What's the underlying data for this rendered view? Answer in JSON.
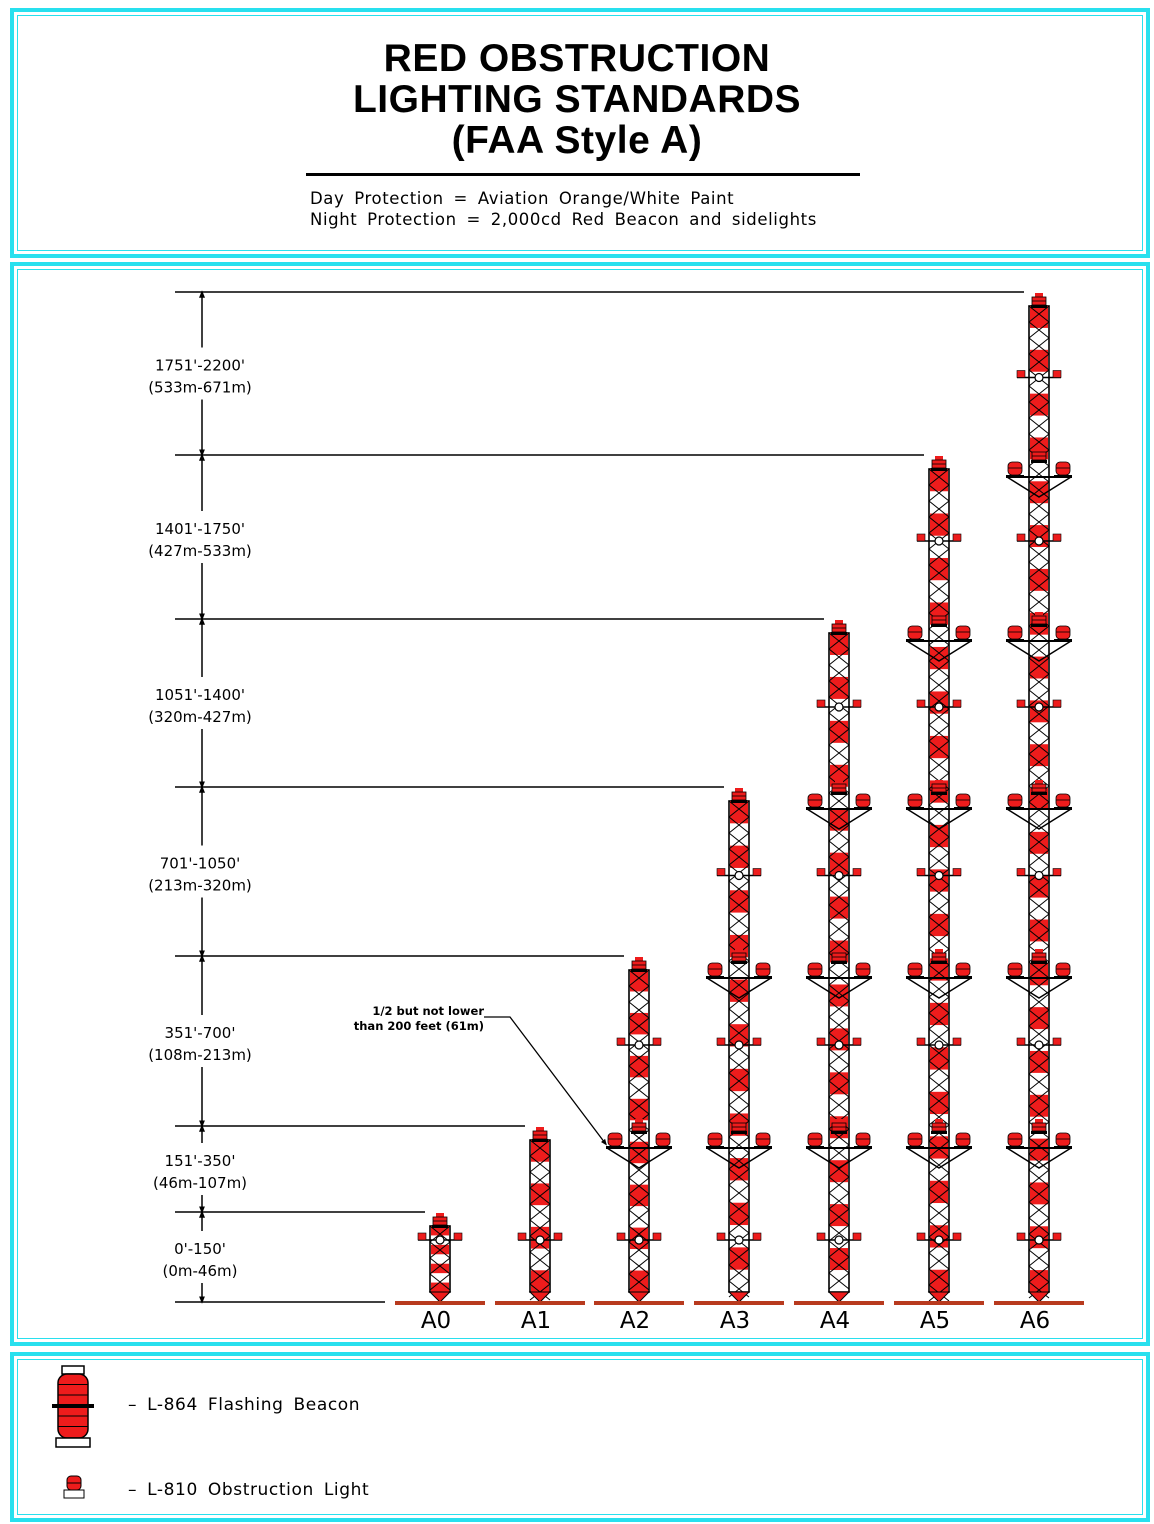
{
  "title": {
    "line1": "RED OBSTRUCTION",
    "line2": "LIGHTING STANDARDS",
    "line3": "(FAA Style A)"
  },
  "subtitle": {
    "line1": "Day Protection = Aviation Orange/White Paint",
    "line2": "Night Protection = 2,000cd Red Beacon and sidelights"
  },
  "height_bands": [
    {
      "feet": "1751'-2200'",
      "meters": "(533m-671m)"
    },
    {
      "feet": "1401'-1750'",
      "meters": "(427m-533m)"
    },
    {
      "feet": "1051'-1400'",
      "meters": "(320m-427m)"
    },
    {
      "feet": "701'-1050'",
      "meters": "(213m-320m)"
    },
    {
      "feet": "351'-700'",
      "meters": "(108m-213m)"
    },
    {
      "feet": "151'-350'",
      "meters": "(46m-107m)"
    },
    {
      "feet": "0'-150'",
      "meters": "(0m-46m)"
    }
  ],
  "towers": [
    "A0",
    "A1",
    "A2",
    "A3",
    "A4",
    "A5",
    "A6"
  ],
  "annotation": {
    "line1": "1/2 but not lower",
    "line2": "than 200 feet (61m)"
  },
  "legend": [
    {
      "icon": "l-864-flashing-beacon-icon",
      "label": "– L-864 Flashing Beacon"
    },
    {
      "icon": "l-810-obstruction-light-icon",
      "label": "– L-810 Obstruction Light"
    }
  ],
  "colors": {
    "frame": "#28e0ee",
    "red": "#ee1c1c",
    "ground": "#b83a1e",
    "ink": "#000000"
  }
}
